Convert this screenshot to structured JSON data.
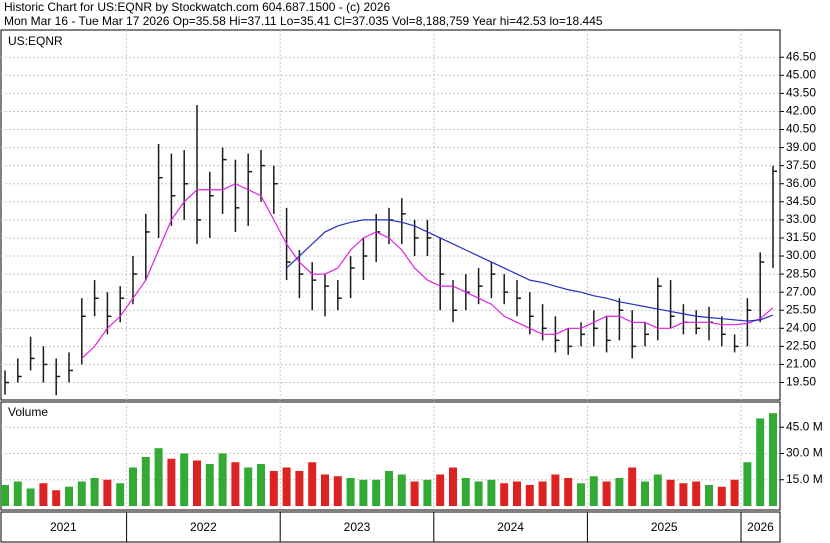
{
  "chart_data": {
    "type": "ohlc",
    "title": "Historic Chart for US:EQNR by Stockwatch.com 604.687.1500 - (c) 2026",
    "subtitle": "Mon Mar 16 - Tue Mar 17 2026   Op=35.58   Hi=37.11   Lo=35.41   Cl=37.035   Vol=8,188,759   Year hi=42.53   lo=18.445",
    "symbol": "US:EQNR",
    "volume_label": "Volume",
    "years": [
      "2021",
      "2022",
      "2023",
      "2024",
      "2025",
      "2026"
    ],
    "bar_color": "#1a1a1a",
    "up_color": "#33aa33",
    "down_color": "#dd2222",
    "high": [
      20.5,
      21.5,
      23.3,
      22.5,
      21.5,
      22,
      26.5,
      28,
      27,
      27.5,
      30,
      33.5,
      39.3,
      38.5,
      38.8,
      42.53,
      37,
      39,
      38,
      38.5,
      38.8,
      37.5,
      34,
      30.5,
      29.5,
      28.5,
      28,
      30,
      31.5,
      33.5,
      34,
      34.8,
      33,
      33,
      31.5,
      28,
      28.5,
      29,
      29.5,
      28.5,
      28,
      27,
      26,
      25,
      24,
      24.5,
      25.5,
      25,
      26.5,
      25.5,
      24.5,
      28.2,
      28,
      26,
      25.5,
      25.8,
      25,
      23.5,
      26.5,
      30.3,
      37.5
    ],
    "low": [
      18.5,
      19.5,
      20.5,
      19.5,
      18.445,
      19.5,
      21,
      25,
      23.5,
      24.5,
      26,
      28,
      31.5,
      32.5,
      33,
      31,
      31.5,
      33.5,
      32,
      32.5,
      34.5,
      33.5,
      28,
      26.5,
      25.5,
      25,
      25.5,
      26.5,
      28,
      29.5,
      31,
      31,
      30,
      30,
      25.5,
      24.5,
      25.5,
      26,
      26.5,
      26,
      25,
      23.5,
      23,
      22,
      21.8,
      22.5,
      22.5,
      22,
      23,
      21.5,
      22.5,
      23,
      24,
      23.5,
      23.5,
      23,
      22.5,
      22,
      22.5,
      24.5,
      29
    ],
    "close": [
      19.5,
      20,
      21.5,
      21,
      20,
      20.5,
      25,
      26.5,
      25,
      26.5,
      28.5,
      32,
      36.5,
      35,
      36,
      33,
      35,
      38,
      34,
      37,
      37.5,
      36,
      29.5,
      28.5,
      28,
      27.5,
      26.5,
      29,
      30,
      32,
      33,
      33.5,
      31.5,
      31.5,
      28.5,
      25.5,
      27,
      27.5,
      28.5,
      27,
      26.5,
      25,
      24,
      23,
      22.5,
      23.5,
      24,
      23,
      25.5,
      22.5,
      23.5,
      27.5,
      25,
      24.5,
      24,
      24.5,
      23.5,
      22.5,
      25.5,
      29.5,
      37.035
    ],
    "series": [
      {
        "color": "#e020e0",
        "values": [
          null,
          null,
          null,
          null,
          null,
          null,
          21.5,
          22.5,
          24,
          25,
          26.5,
          28,
          30.5,
          33,
          34.5,
          35.5,
          35.5,
          35.5,
          36,
          35.5,
          35,
          33,
          31,
          29.5,
          28.5,
          28.5,
          29,
          30.5,
          31.5,
          32,
          31.5,
          30.5,
          29,
          28,
          27.5,
          27.5,
          27,
          26.5,
          26,
          25,
          24.5,
          24,
          23.5,
          23.5,
          24,
          24,
          24.5,
          25,
          25,
          24.5,
          24.5,
          24,
          24,
          24.5,
          24.5,
          24.5,
          24.3,
          24.3,
          24.4,
          24.8,
          25.7
        ]
      },
      {
        "color": "#2030c0",
        "values": [
          null,
          null,
          null,
          null,
          null,
          null,
          null,
          null,
          null,
          null,
          null,
          null,
          null,
          null,
          null,
          null,
          null,
          null,
          null,
          null,
          null,
          null,
          29,
          30,
          31,
          32,
          32.5,
          32.8,
          33,
          33,
          33,
          32.8,
          32.5,
          32,
          31.5,
          31,
          30.5,
          30,
          29.5,
          29,
          28.5,
          28,
          27.8,
          27.5,
          27.2,
          27,
          26.7,
          26.5,
          26.2,
          26,
          25.8,
          25.6,
          25.4,
          25.2,
          25,
          24.9,
          24.8,
          24.7,
          24.6,
          24.7,
          25.1
        ]
      }
    ],
    "volume": [
      12,
      14,
      10,
      13,
      9,
      11,
      14,
      16,
      15,
      13,
      22,
      28,
      33,
      27,
      30,
      26,
      24,
      30,
      25,
      22,
      24,
      20,
      22,
      20,
      25,
      18,
      17,
      16,
      15,
      15,
      20,
      18,
      14,
      15,
      18,
      22,
      16,
      14,
      15,
      13,
      14,
      12,
      14,
      18,
      16,
      13,
      17,
      14,
      16,
      22,
      14,
      18,
      15,
      13,
      14,
      12,
      11,
      15,
      25,
      50,
      53
    ],
    "ylim": [
      18.05,
      48.76
    ],
    "yticks": [
      {
        "value": 19.5,
        "label": "19.50"
      },
      {
        "value": 21,
        "label": "21.00"
      },
      {
        "value": 22.5,
        "label": "22.50"
      },
      {
        "value": 24,
        "label": "24.00"
      },
      {
        "value": 25.5,
        "label": "25.50"
      },
      {
        "value": 27,
        "label": "27.00"
      },
      {
        "value": 28.5,
        "label": "28.50"
      },
      {
        "value": 30,
        "label": "30.00"
      },
      {
        "value": 31.5,
        "label": "31.50"
      },
      {
        "value": 33,
        "label": "33.00"
      },
      {
        "value": 34.5,
        "label": "34.50"
      },
      {
        "value": 36,
        "label": "36.00"
      },
      {
        "value": 37.5,
        "label": "37.50"
      },
      {
        "value": 39,
        "label": "39.00"
      },
      {
        "value": 40.5,
        "label": "40.50"
      },
      {
        "value": 42,
        "label": "42.00"
      },
      {
        "value": 43.5,
        "label": "43.50"
      },
      {
        "value": 45,
        "label": "45.00"
      },
      {
        "value": 46.5,
        "label": "46.50"
      }
    ],
    "y2lim": [
      0,
      59.4
    ],
    "y2ticks": [
      {
        "value": 15,
        "label": "15.0 M"
      },
      {
        "value": 30,
        "label": "30.0 M"
      },
      {
        "value": 45,
        "label": "45.0 M"
      }
    ],
    "grid": true
  }
}
